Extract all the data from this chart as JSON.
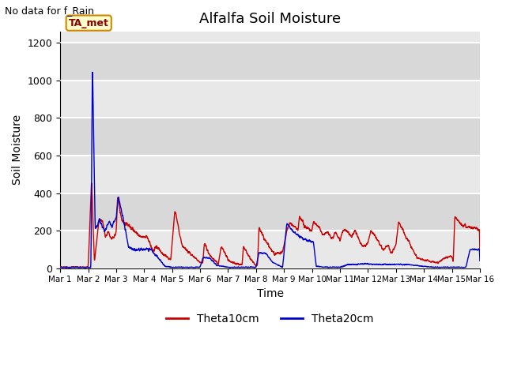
{
  "title": "Alfalfa Soil Moisture",
  "subtitle": "No data for f_Rain",
  "ylabel": "Soil Moisture",
  "xlabel": "Time",
  "ylim": [
    0,
    1260
  ],
  "yticks": [
    0,
    200,
    400,
    600,
    800,
    1000,
    1200
  ],
  "xtick_labels": [
    "Mar 1",
    "Mar 2",
    "Mar 3",
    "Mar 4",
    "Mar 5",
    "Mar 6",
    "Mar 7",
    "Mar 8",
    "Mar 9",
    "Mar 10",
    "Mar 11",
    "Mar 12",
    "Mar 13",
    "Mar 14",
    "Mar 15",
    "Mar 16"
  ],
  "plot_bg_light": "#e8e8e8",
  "plot_bg_dark": "#d8d8d8",
  "fig_bg": "#ffffff",
  "line_color_theta10": "#cc0000",
  "line_color_theta20": "#0000cc",
  "legend_label_theta10": "Theta10cm",
  "legend_label_theta20": "Theta20cm",
  "station_label": "TA_met",
  "station_box_facecolor": "#ffffcc",
  "station_box_edgecolor": "#cc8800"
}
